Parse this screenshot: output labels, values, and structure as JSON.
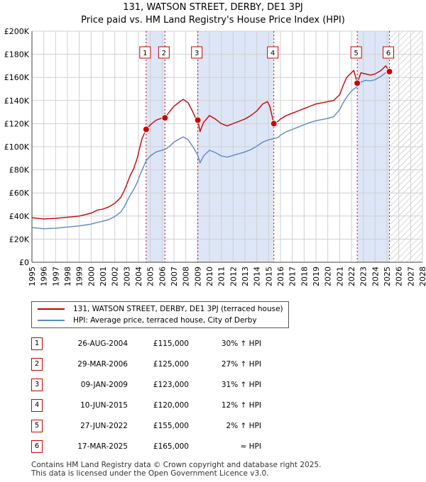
{
  "chart_data": {
    "type": "line",
    "title": "131, WATSON STREET, DERBY, DE1 3PJ",
    "subtitle": "Price paid vs. HM Land Registry's House Price Index (HPI)",
    "x_range": [
      1995,
      2028
    ],
    "ylim": [
      0,
      200000
    ],
    "y_ticks": [
      0,
      20000,
      40000,
      60000,
      80000,
      100000,
      120000,
      140000,
      160000,
      180000,
      200000
    ],
    "y_tick_labels": [
      "£0",
      "£20K",
      "£40K",
      "£60K",
      "£80K",
      "£100K",
      "£120K",
      "£140K",
      "£160K",
      "£180K",
      "£200K"
    ],
    "x_ticks": [
      1995,
      1996,
      1997,
      1998,
      1999,
      2000,
      2001,
      2002,
      2003,
      2004,
      2005,
      2006,
      2007,
      2008,
      2009,
      2010,
      2011,
      2012,
      2013,
      2014,
      2015,
      2016,
      2017,
      2018,
      2019,
      2020,
      2021,
      2022,
      2023,
      2024,
      2025,
      2026,
      2027,
      2028
    ],
    "data_end": 2025.3,
    "series": [
      {
        "name": "131, WATSON STREET, DERBY, DE1 3PJ (terraced house)",
        "color": "#cc0000",
        "points": [
          [
            1995.0,
            38500
          ],
          [
            1996.0,
            37500
          ],
          [
            1997.0,
            38000
          ],
          [
            1998.0,
            39000
          ],
          [
            1999.0,
            40000
          ],
          [
            2000.0,
            42500
          ],
          [
            2000.5,
            45000
          ],
          [
            2001.0,
            46000
          ],
          [
            2001.5,
            48000
          ],
          [
            2002.0,
            51000
          ],
          [
            2002.5,
            56000
          ],
          [
            2002.8,
            62000
          ],
          [
            2003.0,
            67000
          ],
          [
            2003.3,
            75000
          ],
          [
            2003.6,
            81000
          ],
          [
            2003.9,
            90000
          ],
          [
            2004.1,
            99000
          ],
          [
            2004.3,
            107000
          ],
          [
            2004.65,
            115000
          ],
          [
            2005.0,
            119000
          ],
          [
            2005.5,
            123000
          ],
          [
            2006.0,
            125000
          ],
          [
            2006.24,
            125000
          ],
          [
            2006.6,
            130000
          ],
          [
            2007.0,
            135000
          ],
          [
            2007.5,
            139000
          ],
          [
            2007.8,
            141000
          ],
          [
            2008.2,
            138000
          ],
          [
            2008.6,
            130000
          ],
          [
            2008.9,
            123000
          ],
          [
            2009.02,
            123000
          ],
          [
            2009.2,
            113000
          ],
          [
            2009.5,
            121000
          ],
          [
            2010.0,
            127000
          ],
          [
            2010.5,
            124000
          ],
          [
            2011.0,
            120000
          ],
          [
            2011.5,
            118000
          ],
          [
            2012.0,
            120000
          ],
          [
            2012.5,
            122000
          ],
          [
            2013.0,
            124000
          ],
          [
            2013.5,
            127000
          ],
          [
            2014.0,
            131000
          ],
          [
            2014.5,
            137000
          ],
          [
            2014.9,
            139000
          ],
          [
            2015.1,
            135000
          ],
          [
            2015.44,
            120000
          ],
          [
            2015.8,
            122000
          ],
          [
            2016.0,
            124000
          ],
          [
            2016.5,
            127000
          ],
          [
            2017.0,
            129000
          ],
          [
            2017.5,
            131000
          ],
          [
            2018.0,
            133000
          ],
          [
            2018.5,
            135000
          ],
          [
            2019.0,
            137000
          ],
          [
            2019.5,
            138000
          ],
          [
            2020.0,
            139000
          ],
          [
            2020.5,
            140000
          ],
          [
            2021.0,
            145000
          ],
          [
            2021.3,
            153000
          ],
          [
            2021.6,
            160000
          ],
          [
            2021.9,
            163000
          ],
          [
            2022.2,
            166000
          ],
          [
            2022.49,
            155000
          ],
          [
            2022.8,
            164000
          ],
          [
            2023.2,
            163000
          ],
          [
            2023.6,
            162000
          ],
          [
            2024.0,
            163000
          ],
          [
            2024.5,
            166000
          ],
          [
            2024.9,
            170000
          ],
          [
            2025.21,
            165000
          ]
        ]
      },
      {
        "name": "HPI: Average price, terraced house, City of Derby",
        "color": "#5b8ac6",
        "points": [
          [
            1995.0,
            30000
          ],
          [
            1996.0,
            29000
          ],
          [
            1997.0,
            29500
          ],
          [
            1998.0,
            30500
          ],
          [
            1999.0,
            31500
          ],
          [
            2000.0,
            33000
          ],
          [
            2000.5,
            34500
          ],
          [
            2001.0,
            35500
          ],
          [
            2001.5,
            37000
          ],
          [
            2002.0,
            39500
          ],
          [
            2002.5,
            43500
          ],
          [
            2002.8,
            48000
          ],
          [
            2003.0,
            52000
          ],
          [
            2003.3,
            58000
          ],
          [
            2003.6,
            63000
          ],
          [
            2003.9,
            69000
          ],
          [
            2004.1,
            75000
          ],
          [
            2004.4,
            82000
          ],
          [
            2004.65,
            88000
          ],
          [
            2005.0,
            92000
          ],
          [
            2005.5,
            95500
          ],
          [
            2006.0,
            97000
          ],
          [
            2006.3,
            98000
          ],
          [
            2006.7,
            101000
          ],
          [
            2007.0,
            104000
          ],
          [
            2007.5,
            107000
          ],
          [
            2007.8,
            108500
          ],
          [
            2008.2,
            106000
          ],
          [
            2008.6,
            100000
          ],
          [
            2009.0,
            93000
          ],
          [
            2009.2,
            86000
          ],
          [
            2009.5,
            92000
          ],
          [
            2010.0,
            97000
          ],
          [
            2010.5,
            95000
          ],
          [
            2011.0,
            92000
          ],
          [
            2011.5,
            91000
          ],
          [
            2012.0,
            92500
          ],
          [
            2012.5,
            94000
          ],
          [
            2013.0,
            95500
          ],
          [
            2013.5,
            97500
          ],
          [
            2014.0,
            100500
          ],
          [
            2014.5,
            104000
          ],
          [
            2015.0,
            106000
          ],
          [
            2015.44,
            107000
          ],
          [
            2015.8,
            108000
          ],
          [
            2016.0,
            110000
          ],
          [
            2016.5,
            113000
          ],
          [
            2017.0,
            115000
          ],
          [
            2017.5,
            117000
          ],
          [
            2018.0,
            119000
          ],
          [
            2018.5,
            121000
          ],
          [
            2019.0,
            122500
          ],
          [
            2019.5,
            123500
          ],
          [
            2020.0,
            124500
          ],
          [
            2020.5,
            126000
          ],
          [
            2021.0,
            132000
          ],
          [
            2021.3,
            138000
          ],
          [
            2021.6,
            143000
          ],
          [
            2021.9,
            147000
          ],
          [
            2022.2,
            150000
          ],
          [
            2022.49,
            152000
          ],
          [
            2022.8,
            156000
          ],
          [
            2023.2,
            157500
          ],
          [
            2023.6,
            157000
          ],
          [
            2024.0,
            158000
          ],
          [
            2024.5,
            161000
          ],
          [
            2024.9,
            164000
          ],
          [
            2025.21,
            165000
          ]
        ]
      }
    ],
    "sales": [
      {
        "n": "1",
        "x": 2004.65,
        "value": 115000,
        "date": "26-AUG-2004",
        "price": "£115,000",
        "hpi": "30% ↑ HPI"
      },
      {
        "n": "2",
        "x": 2006.24,
        "value": 125000,
        "date": "29-MAR-2006",
        "price": "£125,000",
        "hpi": "27% ↑ HPI"
      },
      {
        "n": "3",
        "x": 2009.02,
        "value": 123000,
        "date": "09-JAN-2009",
        "price": "£123,000",
        "hpi": "31% ↑ HPI"
      },
      {
        "n": "4",
        "x": 2015.44,
        "value": 120000,
        "date": "10-JUN-2015",
        "price": "£120,000",
        "hpi": "12% ↑ HPI"
      },
      {
        "n": "5",
        "x": 2022.49,
        "value": 155000,
        "date": "27-JUN-2022",
        "price": "£155,000",
        "hpi": "2% ↑ HPI"
      },
      {
        "n": "6",
        "x": 2025.21,
        "value": 165000,
        "date": "17-MAR-2025",
        "price": "£165,000",
        "hpi": "≈ HPI"
      }
    ],
    "shaded_periods": [
      [
        2004.65,
        2006.24
      ],
      [
        2009.02,
        2015.44
      ],
      [
        2022.49,
        2025.21
      ]
    ],
    "legend": {
      "property": "131, WATSON STREET, DERBY, DE1 3PJ (terraced house)",
      "hpi": "HPI: Average price, terraced house, City of Derby"
    }
  },
  "footer": {
    "line1": "Contains HM Land Registry data © Crown copyright and database right 2025.",
    "line2": "This data is licensed under the Open Government Licence v3.0."
  },
  "colors": {
    "property": "#cc0000",
    "hpi": "#5b8ac6",
    "shade": "#dde6f6",
    "grid": "#d0d0d0"
  }
}
